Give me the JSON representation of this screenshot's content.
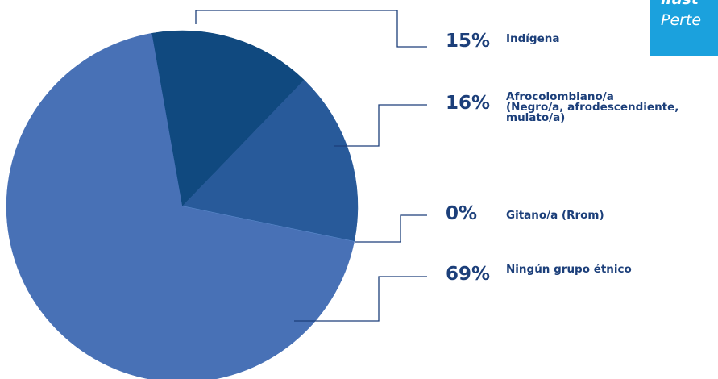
{
  "chart_data": {
    "type": "pie",
    "categories": [
      "Indígena",
      "Afrocolombiano/a\n(Negro/a, afrodescendiente,\nmulato/a)",
      "Gitano/a (Rrom)",
      "Ningún grupo étnico"
    ],
    "values": [
      15,
      16,
      0,
      69
    ],
    "value_labels": [
      "15%",
      "16%",
      "0%",
      "69%"
    ],
    "colors": [
      "#10497f",
      "#285a9a",
      "#5f8fd0",
      "#4871b6"
    ],
    "corner_text": [
      "ilust",
      "Perte"
    ]
  }
}
